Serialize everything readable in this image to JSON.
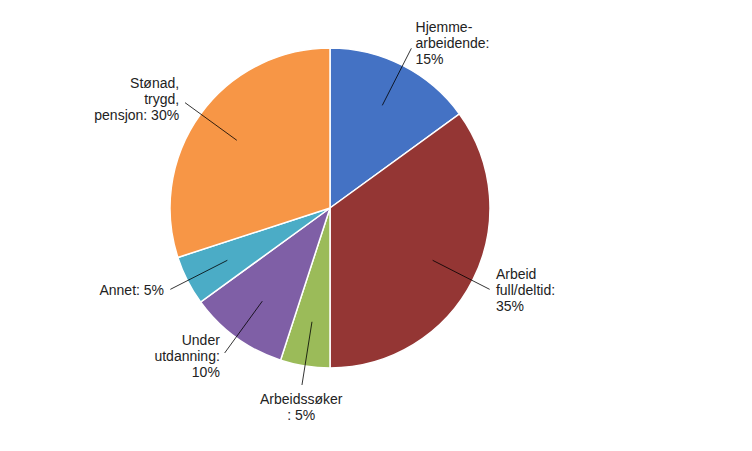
{
  "chart_data": {
    "type": "pie",
    "categories": [
      "Hjemme-\narbeidende:\n15%",
      "Arbeid\nfull/deltid:\n35%",
      "Arbeidssøker\n: 5%",
      "Under\nutdanning:\n10%",
      "Annet: 5%",
      "Stønad,\ntrygd,\npensjon: 30%"
    ],
    "values": [
      15,
      35,
      5,
      10,
      5,
      30
    ],
    "colors": [
      "#4472C4",
      "#943634",
      "#9BBB59",
      "#7F5FA6",
      "#4BACC6",
      "#F79646"
    ]
  }
}
